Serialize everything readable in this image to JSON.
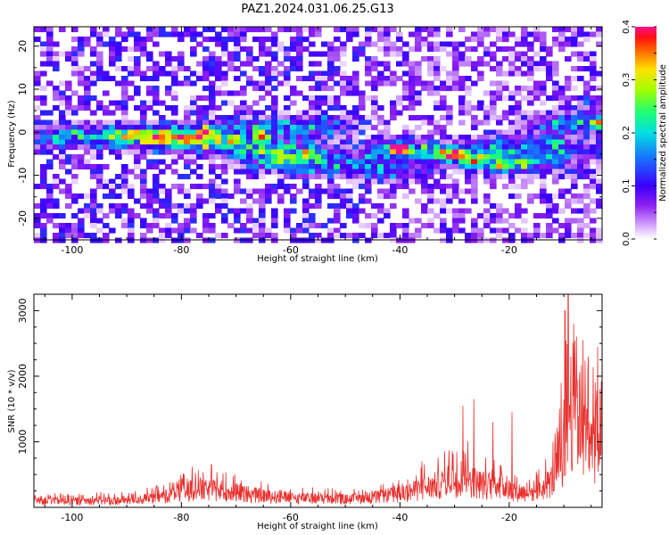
{
  "title": "PAZ1.2024.031.06.25.G13",
  "chart_data": [
    {
      "type": "heatmap",
      "xlabel": "Height of straight line (km)",
      "ylabel": "Frequency (Hz)",
      "xlim": [
        -107,
        -3
      ],
      "ylim": [
        -25,
        24.5
      ],
      "xticks": [
        -100,
        -80,
        -60,
        -40,
        -20
      ],
      "yticks": [
        -20,
        -10,
        0,
        10,
        20
      ],
      "colorbar": {
        "label": "Normalized spectral amplitude",
        "range": [
          0.0,
          0.4
        ],
        "ticks": [
          "0.0",
          "0.1",
          "0.2",
          "0.3",
          "0.4"
        ]
      },
      "ridges": [
        {
          "x": [
            -103,
            -80
          ],
          "y": [
            -1,
            -1
          ],
          "amp": 0.12
        },
        {
          "x": [
            -88,
            -58
          ],
          "y": [
            -1,
            -5
          ],
          "amp": 0.16
        },
        {
          "x": [
            -75,
            -55
          ],
          "y": [
            0,
            1.5
          ],
          "amp": 0.13
        },
        {
          "x": [
            -62,
            -42
          ],
          "y": [
            -7,
            -9
          ],
          "amp": 0.1
        },
        {
          "x": [
            -40,
            -18
          ],
          "y": [
            -4,
            -7
          ],
          "amp": 0.2
        },
        {
          "x": [
            -20,
            -10
          ],
          "y": [
            -3,
            -4
          ],
          "amp": 0.12
        },
        {
          "x": [
            -10,
            -3
          ],
          "y": [
            2,
            3
          ],
          "amp": 0.14
        }
      ],
      "peaks": [
        {
          "x": -40,
          "y": -4,
          "amp": 0.38
        },
        {
          "x": -30,
          "y": -5,
          "amp": 0.26
        },
        {
          "x": -27,
          "y": -7,
          "amp": 0.2
        },
        {
          "x": -22,
          "y": -8,
          "amp": 0.18
        },
        {
          "x": -45,
          "y": -6,
          "amp": 0.13
        },
        {
          "x": -65,
          "y": -1,
          "amp": 0.2
        },
        {
          "x": -70,
          "y": -2,
          "amp": 0.18
        },
        {
          "x": -57,
          "y": -5,
          "amp": 0.16
        },
        {
          "x": -84,
          "y": -1,
          "amp": 0.14
        },
        {
          "x": -75,
          "y": 0,
          "amp": 0.15
        },
        {
          "x": -12,
          "y": -2,
          "amp": 0.14
        },
        {
          "x": -4,
          "y": 2,
          "amp": 0.17
        },
        {
          "x": -5,
          "y": 7,
          "amp": 0.12
        },
        {
          "x": -8,
          "y": -9,
          "amp": 0.11
        }
      ]
    },
    {
      "type": "line",
      "xlabel": "Height of straight line (km)",
      "ylabel": "SNR (10 * v/v)",
      "xlim": [
        -107,
        -3
      ],
      "ylim": [
        0,
        3250
      ],
      "xticks": [
        -100,
        -80,
        -60,
        -40,
        -20
      ],
      "yticks": [
        1000,
        2000,
        3000
      ],
      "color": "#e8302e",
      "envelope": {
        "x": [
          -107,
          -100,
          -90,
          -85,
          -80,
          -77,
          -74,
          -70,
          -65,
          -60,
          -55,
          -50,
          -45,
          -42,
          -40,
          -37,
          -35,
          -33,
          -30,
          -28,
          -26,
          -24,
          -22,
          -20,
          -18,
          -16,
          -14,
          -12,
          -11,
          -10,
          -9,
          -8,
          -7,
          -6,
          -5,
          -4,
          -3
        ],
        "y": [
          170,
          160,
          170,
          230,
          380,
          430,
          420,
          360,
          280,
          230,
          220,
          200,
          240,
          300,
          330,
          420,
          490,
          560,
          700,
          800,
          600,
          540,
          580,
          440,
          380,
          360,
          440,
          700,
          1000,
          1500,
          2400,
          2600,
          2100,
          1700,
          1450,
          1800,
          2000
        ]
      },
      "spikes": [
        {
          "x": -74.5,
          "y": 650
        },
        {
          "x": -78,
          "y": 620
        },
        {
          "x": -36,
          "y": 700
        },
        {
          "x": -33,
          "y": 760
        },
        {
          "x": -31,
          "y": 870
        },
        {
          "x": -28.5,
          "y": 1550
        },
        {
          "x": -26.5,
          "y": 1650
        },
        {
          "x": -23,
          "y": 1300
        },
        {
          "x": -19.5,
          "y": 1450
        },
        {
          "x": -12,
          "y": 1000
        },
        {
          "x": -10.5,
          "y": 1900
        },
        {
          "x": -9.8,
          "y": 3000
        },
        {
          "x": -9.2,
          "y": 3250
        },
        {
          "x": -8.2,
          "y": 2800
        },
        {
          "x": -6.5,
          "y": 2550
        },
        {
          "x": -5.5,
          "y": 2300
        },
        {
          "x": -3.8,
          "y": 2450
        }
      ]
    }
  ]
}
